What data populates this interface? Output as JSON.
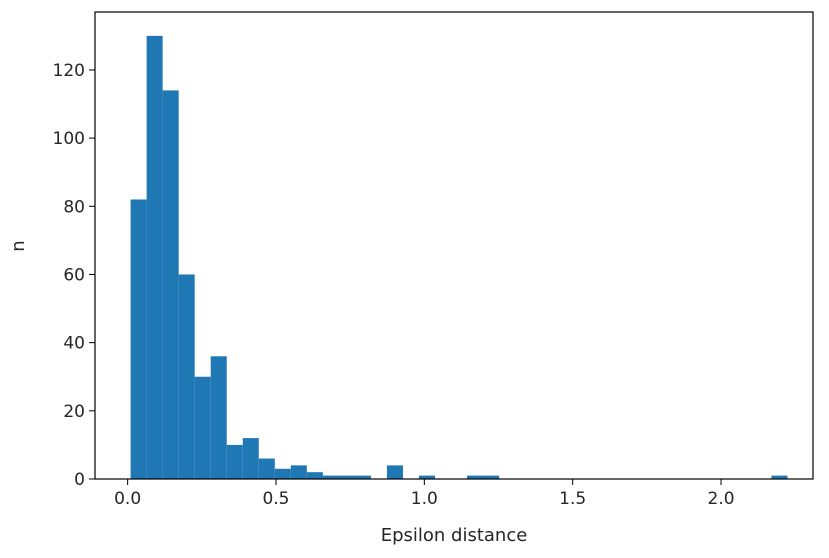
{
  "chart_data": {
    "type": "bar",
    "subtype": "histogram",
    "title": "",
    "xlabel": "Epsilon distance",
    "ylabel": "n",
    "xlim": [
      -0.11,
      2.31
    ],
    "ylim": [
      0,
      137
    ],
    "grid": false,
    "bar_color": "#1f77b4",
    "xticks": [
      {
        "value": 0.0,
        "label": "0.0"
      },
      {
        "value": 0.5,
        "label": "0.5"
      },
      {
        "value": 1.0,
        "label": "1.0"
      },
      {
        "value": 1.5,
        "label": "1.5"
      },
      {
        "value": 2.0,
        "label": "2.0"
      }
    ],
    "yticks": [
      {
        "value": 0,
        "label": "0"
      },
      {
        "value": 20,
        "label": "20"
      },
      {
        "value": 40,
        "label": "40"
      },
      {
        "value": 60,
        "label": "60"
      },
      {
        "value": 80,
        "label": "80"
      },
      {
        "value": 100,
        "label": "100"
      },
      {
        "value": 120,
        "label": "120"
      }
    ],
    "bin_edges": [
      0.01,
      0.064,
      0.118,
      0.172,
      0.226,
      0.28,
      0.334,
      0.388,
      0.442,
      0.496,
      0.55,
      0.604,
      0.658,
      0.712,
      0.766,
      0.82,
      0.874,
      0.928,
      0.982,
      1.036,
      1.09,
      1.144,
      1.198,
      1.252,
      1.306,
      1.36,
      1.414,
      1.468,
      1.522,
      1.576,
      1.63,
      1.684,
      1.738,
      1.792,
      1.846,
      1.9,
      1.954,
      2.008,
      2.062,
      2.116,
      2.17,
      2.224
    ],
    "values": [
      82,
      130,
      114,
      60,
      30,
      36,
      10,
      12,
      6,
      3,
      4,
      2,
      1,
      1,
      1,
      0,
      4,
      0,
      1,
      0,
      0,
      1,
      1,
      0,
      0,
      0,
      0,
      0,
      0,
      0,
      0,
      0,
      0,
      0,
      0,
      0,
      0,
      0,
      0,
      0,
      1
    ]
  }
}
